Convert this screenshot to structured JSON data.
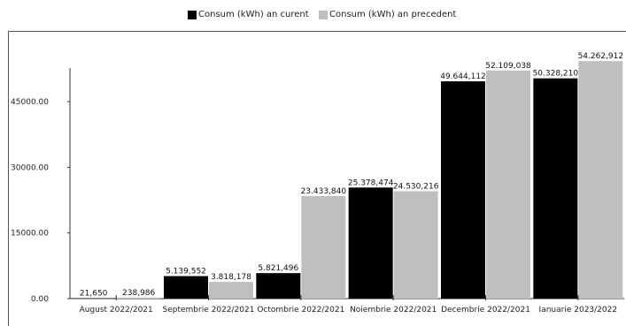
{
  "chart_data": {
    "type": "bar",
    "title": "",
    "xlabel": "",
    "ylabel": "",
    "categories": [
      "August 2022/2021",
      "Septembrie 2022/2021",
      "Octombrie 2022/2021",
      "Noiembrie 2022/2021",
      "Decembrie 2022/2021",
      "Ianuarie 2023/2022"
    ],
    "series": [
      {
        "name": "Consum (kWh) an curent",
        "color": "#000000",
        "values": [
          21.65,
          5139.552,
          5821.496,
          25378.474,
          49644.112,
          50328.21
        ],
        "labels": [
          "21,650",
          "5.139,552",
          "5.821,496",
          "25.378,474",
          "49.644,112",
          "50.328,210"
        ]
      },
      {
        "name": "Consum (kWh) an precedent",
        "color": "#bfbfbf",
        "values": [
          238.986,
          3818.178,
          23433.84,
          24530.216,
          52109.038,
          54262.912
        ],
        "labels": [
          "238,986",
          "3.818,178",
          "23.433,840",
          "24.530,216",
          "52.109,038",
          "54.262,912"
        ]
      }
    ],
    "yticks": [
      0,
      15000,
      30000,
      45000
    ],
    "ytick_labels": [
      "0.00",
      "15000.00",
      "30000.00",
      "45000.00"
    ],
    "ylim": [
      0,
      54500
    ],
    "grid": false,
    "legend_position": "top-center"
  }
}
